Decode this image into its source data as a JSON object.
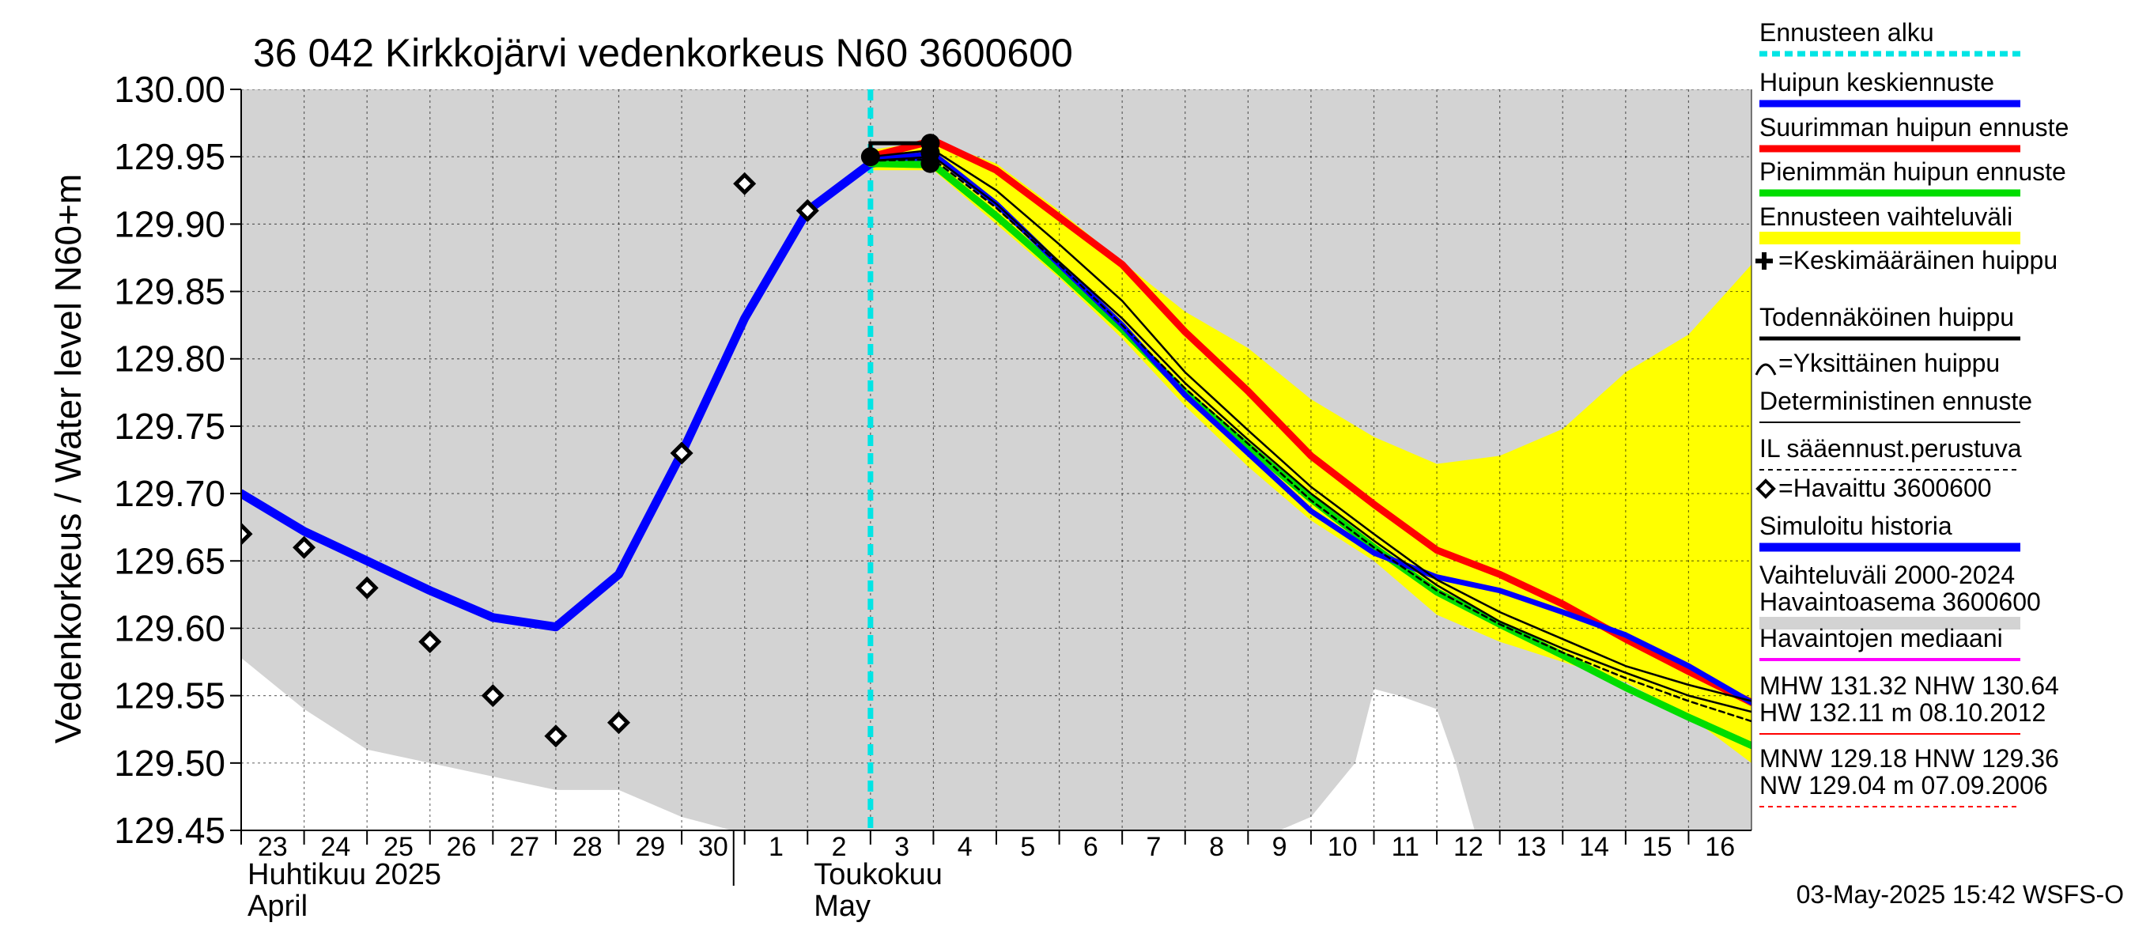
{
  "chart_data": {
    "type": "line",
    "title": "36 042 Kirkkojärvi vedenkorkeus N60 3600600",
    "ylabel": "Vedenkorkeus / Water level   N60+m",
    "ylim": [
      129.45,
      130.0
    ],
    "yticks": [
      "130.00",
      "129.95",
      "129.90",
      "129.85",
      "129.80",
      "129.75",
      "129.70",
      "129.65",
      "129.60",
      "129.55",
      "129.50",
      "129.45"
    ],
    "xlim": [
      0,
      24
    ],
    "xticks": [
      {
        "x": 0,
        "label": "23"
      },
      {
        "x": 1,
        "label": "24"
      },
      {
        "x": 2,
        "label": "25"
      },
      {
        "x": 3,
        "label": "26"
      },
      {
        "x": 4,
        "label": "27"
      },
      {
        "x": 5,
        "label": "28"
      },
      {
        "x": 6,
        "label": "29"
      },
      {
        "x": 7,
        "label": "30"
      },
      {
        "x": 8,
        "label": "1"
      },
      {
        "x": 9,
        "label": "2"
      },
      {
        "x": 10,
        "label": "3"
      },
      {
        "x": 11,
        "label": "4"
      },
      {
        "x": 12,
        "label": "5"
      },
      {
        "x": 13,
        "label": "6"
      },
      {
        "x": 14,
        "label": "7"
      },
      {
        "x": 15,
        "label": "8"
      },
      {
        "x": 16,
        "label": "9"
      },
      {
        "x": 17,
        "label": "10"
      },
      {
        "x": 18,
        "label": "11"
      },
      {
        "x": 19,
        "label": "12"
      },
      {
        "x": 20,
        "label": "13"
      },
      {
        "x": 21,
        "label": "14"
      },
      {
        "x": 22,
        "label": "15"
      },
      {
        "x": 23,
        "label": "16"
      }
    ],
    "months": [
      {
        "x": 0,
        "fi": "Huhtikuu  2025",
        "en": "April"
      },
      {
        "x": 9,
        "fi": "Toukokuu",
        "en": "May"
      }
    ],
    "forecast_start_x": 10,
    "grey_band": {
      "x": [
        0,
        1,
        2,
        3,
        4,
        5,
        6,
        7,
        7.8,
        8,
        9,
        10,
        11,
        12,
        13,
        14,
        15,
        16,
        16.5,
        17,
        17.7,
        18,
        18.4,
        19,
        19.3,
        19.6,
        20,
        21,
        21.6,
        22,
        23,
        24
      ],
      "high": [
        130.0,
        130.0,
        130.0,
        130.0,
        130.0,
        130.0,
        130.0,
        130.0,
        130.0,
        130.0,
        130.0,
        130.0,
        130.0,
        130.0,
        130.0,
        130.0,
        130.0,
        130.0,
        130.0,
        130.0,
        130.0,
        130.0,
        130.0,
        130.0,
        130.0,
        130.0,
        130.0,
        130.0,
        130.0,
        130.0,
        130.0,
        130.0
      ],
      "low": [
        129.578,
        129.54,
        129.51,
        129.5,
        129.49,
        129.48,
        129.48,
        129.46,
        129.45,
        129.45,
        129.45,
        129.45,
        129.45,
        129.45,
        129.45,
        129.45,
        129.45,
        129.45,
        129.45,
        129.46,
        129.5,
        129.555,
        129.55,
        129.54,
        129.5,
        129.45,
        129.45,
        129.45,
        129.45,
        129.45,
        129.45,
        129.45
      ]
    },
    "forecast_range": {
      "x": [
        10,
        11,
        12,
        13,
        14,
        15,
        16,
        17,
        18,
        19,
        20,
        21,
        22,
        23,
        24
      ],
      "high": [
        129.955,
        129.962,
        129.945,
        129.91,
        129.872,
        129.835,
        129.808,
        129.77,
        129.742,
        129.722,
        129.728,
        129.748,
        129.79,
        129.818,
        129.87
      ],
      "low": [
        129.94,
        129.94,
        129.9,
        129.86,
        129.815,
        129.765,
        129.72,
        129.68,
        129.65,
        129.61,
        129.59,
        129.575,
        129.56,
        129.535,
        129.5
      ]
    },
    "series": [
      {
        "name": "Simuloitu historia",
        "color": "#0000ff",
        "width": 11,
        "x": [
          0,
          1,
          2,
          3,
          4,
          5,
          6,
          7,
          8,
          9,
          10,
          11
        ],
        "y": [
          129.7,
          129.672,
          129.65,
          129.628,
          129.608,
          129.601,
          129.64,
          129.73,
          129.83,
          129.91,
          129.945,
          129.95
        ]
      },
      {
        "name": "Suurimman huipun ennuste",
        "color": "#ff0000",
        "width": 9,
        "x": [
          10,
          11,
          12,
          13,
          14,
          15,
          16,
          17,
          18,
          19,
          20,
          21,
          22,
          23,
          24
        ],
        "y": [
          129.95,
          129.962,
          129.94,
          129.905,
          129.87,
          129.82,
          129.776,
          129.728,
          129.692,
          129.658,
          129.64,
          129.618,
          129.592,
          129.568,
          129.545
        ]
      },
      {
        "name": "Pienimmän huipun ennuste",
        "color": "#00dd00",
        "width": 9,
        "x": [
          10,
          11,
          12,
          13,
          14,
          15,
          16,
          17,
          18,
          19,
          20,
          21,
          22,
          23,
          24
        ],
        "y": [
          129.945,
          129.944,
          129.906,
          129.865,
          129.822,
          129.775,
          129.735,
          129.696,
          129.66,
          129.627,
          129.603,
          129.58,
          129.556,
          129.534,
          129.513
        ]
      },
      {
        "name": "Huipun keskiennuste",
        "color": "#0000ff",
        "width": 7,
        "x": [
          10,
          11,
          12,
          13,
          14,
          15,
          16,
          17,
          18,
          19,
          20,
          21,
          22,
          23,
          24
        ],
        "y": [
          129.948,
          129.952,
          129.915,
          129.87,
          129.825,
          129.773,
          129.73,
          129.687,
          129.656,
          129.638,
          129.628,
          129.612,
          129.595,
          129.572,
          129.545
        ]
      },
      {
        "name": "Todennäköinen huippu",
        "color": "#000000",
        "width": 2.5,
        "x": [
          10,
          11,
          12,
          13,
          14,
          15,
          16,
          17,
          18,
          19,
          20,
          21,
          22,
          23,
          24
        ],
        "y": [
          129.95,
          129.955,
          129.925,
          129.885,
          129.843,
          129.79,
          129.747,
          129.705,
          129.67,
          129.636,
          129.612,
          129.592,
          129.572,
          129.558,
          129.546
        ]
      },
      {
        "name": "Deterministinen ennuste",
        "color": "#000000",
        "width": 2.5,
        "x": [
          10,
          11,
          12,
          13,
          14,
          15,
          16,
          17,
          18,
          19,
          20,
          21,
          22,
          23,
          24
        ],
        "y": [
          129.947,
          129.95,
          129.915,
          129.872,
          129.83,
          129.782,
          129.74,
          129.7,
          129.665,
          129.632,
          129.605,
          129.585,
          129.567,
          129.55,
          129.538
        ]
      },
      {
        "name": "IL sääennust.perustuva",
        "color": "#000000",
        "width": 2.5,
        "dash": "7,5",
        "x": [
          10,
          11,
          12,
          13,
          14,
          15,
          16,
          17,
          18,
          19,
          20,
          21,
          22,
          23,
          24
        ],
        "y": [
          129.947,
          129.948,
          129.912,
          129.87,
          129.825,
          129.778,
          129.737,
          129.695,
          129.66,
          129.628,
          129.603,
          129.582,
          129.563,
          129.546,
          129.531
        ]
      }
    ],
    "peak_box": {
      "x": [
        10,
        11
      ],
      "y": [
        129.95,
        129.96
      ]
    },
    "peak_markers": [
      {
        "x": 10,
        "y": 129.95
      },
      {
        "x": 10.95,
        "y": 129.96
      },
      {
        "x": 10.95,
        "y": 129.953
      },
      {
        "x": 10.95,
        "y": 129.945
      }
    ],
    "observed": {
      "name": "=Havaittu 3600600",
      "x": [
        0,
        1,
        2,
        3,
        4,
        5,
        6,
        7,
        8,
        9
      ],
      "y": [
        129.67,
        129.66,
        129.63,
        129.59,
        129.55,
        129.52,
        129.53,
        129.73,
        129.93,
        129.91
      ]
    },
    "legend": [
      {
        "text": "Ennusteen alku",
        "kind": "line",
        "color": "#00e5e5",
        "dash": "10,6",
        "width": 7
      },
      {
        "text": "Huipun keskiennuste",
        "kind": "line",
        "color": "#0000ff",
        "width": 9
      },
      {
        "text": "Suurimman huipun ennuste",
        "kind": "line",
        "color": "#ff0000",
        "width": 9
      },
      {
        "text": "Pienimmän huipun ennuste",
        "kind": "line",
        "color": "#00dd00",
        "width": 9
      },
      {
        "text": "Ennusteen vaihteluväli",
        "kind": "band",
        "color": "#ffff00"
      },
      {
        "text": "=Keskimääräinen huippu",
        "kind": "plus",
        "color": "#000000"
      },
      {
        "text": "Todennäköinen huippu",
        "kind": "line",
        "color": "#000000",
        "width": 5
      },
      {
        "text": "=Yksittäinen huippu",
        "kind": "arc",
        "color": "#000000"
      },
      {
        "text": "Deterministinen ennuste",
        "kind": "line",
        "color": "#000000",
        "width": 2
      },
      {
        "text": "IL sääennust.perustuva",
        "kind": "line",
        "color": "#000000",
        "width": 2,
        "dash": "6,5"
      },
      {
        "text": "=Havaittu 3600600",
        "kind": "diamond",
        "color": "#000000"
      },
      {
        "text": "Simuloitu historia",
        "kind": "line",
        "color": "#0000ff",
        "width": 11
      },
      {
        "text": "Vaihteluväli 2000-2024\n Havaintoasema 3600600",
        "kind": "band",
        "color": "#d3d3d3"
      },
      {
        "text": "Havaintojen mediaani",
        "kind": "line",
        "color": "#ff00ff",
        "width": 4
      },
      {
        "text": "MHW 131.32 NHW 130.64\nHW 132.11 m 08.10.2012",
        "kind": "line",
        "color": "#ff0000",
        "width": 2
      },
      {
        "text": "MNW 129.18 HNW 129.36\nNW 129.04 m 07.09.2006",
        "kind": "line",
        "color": "#ff0000",
        "width": 2,
        "dash": "6,5"
      }
    ]
  },
  "footer": {
    "timestamp": "03-May-2025 15:42 WSFS-O"
  }
}
